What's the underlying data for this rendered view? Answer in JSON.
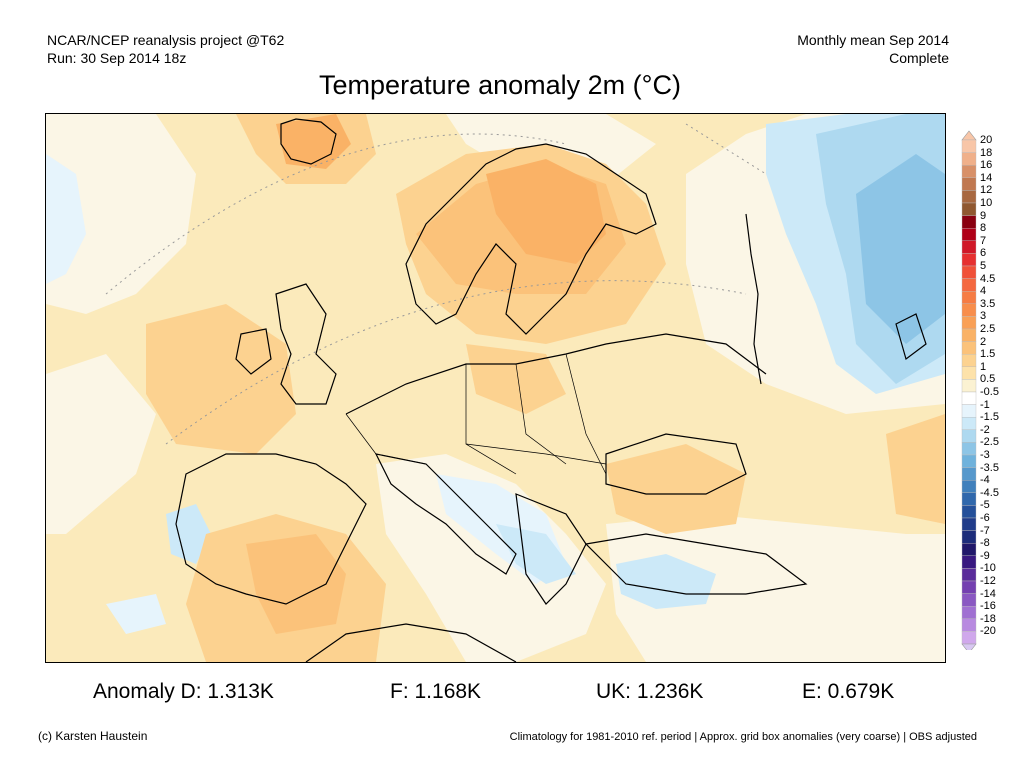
{
  "header": {
    "left_line1": "NCAR/NCEP reanalysis project @T62",
    "left_line2": "Run: 30 Sep 2014 18z",
    "right_line1": "Monthly mean Sep 2014",
    "right_line2": "Complete"
  },
  "title": "Temperature anomaly 2m (°C)",
  "legend": {
    "labels": [
      "20",
      "18",
      "16",
      "14",
      "12",
      "10",
      "9",
      "8",
      "7",
      "6",
      "5",
      "4.5",
      "4",
      "3.5",
      "3",
      "2.5",
      "2",
      "1.5",
      "1",
      "0.5",
      "-0.5",
      "-1",
      "-1.5",
      "-2",
      "-2.5",
      "-3",
      "-3.5",
      "-4",
      "-4.5",
      "-5",
      "-6",
      "-7",
      "-8",
      "-9",
      "-10",
      "-12",
      "-14",
      "-16",
      "-18",
      "-20"
    ],
    "colors": [
      "#f8c6a8",
      "#f0b08a",
      "#d89068",
      "#c07850",
      "#a86840",
      "#905830",
      "#8a0010",
      "#b00018",
      "#d01828",
      "#e63030",
      "#f05038",
      "#f46840",
      "#f67c44",
      "#f88e4c",
      "#f9a056",
      "#fab266",
      "#fbc27a",
      "#fcd290",
      "#fde2aa",
      "#fbf2d2",
      "#ffffff",
      "#e6f4fc",
      "#cce9f8",
      "#aed9f0",
      "#8dc5e6",
      "#6fb2dc",
      "#5698cc",
      "#4080bc",
      "#3068ac",
      "#24509a",
      "#203c8a",
      "#1c2c7a",
      "#20186a",
      "#381880",
      "#5a2c9a",
      "#7440b0",
      "#8a58c2",
      "#a070d2",
      "#b88ae0",
      "#d0a8ec"
    ],
    "arrow_top_color": "#f8c6a8",
    "arrow_bottom_color": "#d8c8f2"
  },
  "stats": {
    "d": "Anomaly D: 1.313K",
    "f": "F: 1.168K",
    "uk": "UK: 1.236K",
    "e": "E: 0.679K"
  },
  "footer": {
    "left": "(c) Karsten Haustein",
    "right": "Climatology for 1981-2010 ref. period | Approx. grid box anomalies (very coarse) | OBS adjusted"
  }
}
